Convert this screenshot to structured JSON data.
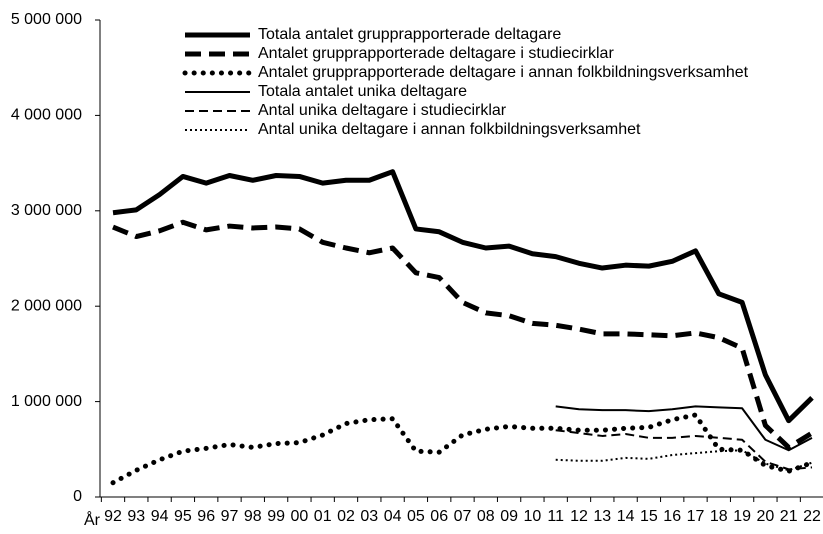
{
  "chart_data": {
    "type": "line",
    "x_label": "År",
    "categories": [
      "92",
      "93",
      "94",
      "95",
      "96",
      "97",
      "98",
      "99",
      "00",
      "01",
      "02",
      "03",
      "04",
      "05",
      "06",
      "07",
      "08",
      "09",
      "10",
      "11",
      "12",
      "13",
      "14",
      "15",
      "16",
      "17",
      "18",
      "19",
      "20",
      "21",
      "22"
    ],
    "ylim": [
      0,
      5000000
    ],
    "yticks": [
      0,
      {
        "value": 1000000,
        "label": "1 000 000"
      },
      {
        "value": 2000000,
        "label": "2 000 000"
      },
      {
        "value": 3000000,
        "label": "3 000 000"
      },
      {
        "value": 4000000,
        "label": "4 000 000"
      },
      {
        "value": 5000000,
        "label": "5 000 000"
      }
    ],
    "legend": "top",
    "series": [
      {
        "name": "Totala antalet grupprapporterade deltagare",
        "color": "#000000",
        "width": 5,
        "dash": "solid",
        "values": [
          2980000,
          3010000,
          3170000,
          3360000,
          3290000,
          3370000,
          3320000,
          3370000,
          3360000,
          3290000,
          3320000,
          3320000,
          3410000,
          2810000,
          2780000,
          2670000,
          2610000,
          2630000,
          2550000,
          2520000,
          2450000,
          2400000,
          2430000,
          2420000,
          2470000,
          2580000,
          2130000,
          2040000,
          1280000,
          800000,
          1040000
        ]
      },
      {
        "name": "Antalet grupprapporterade deltagare i studiecirklar",
        "color": "#000000",
        "width": 5,
        "dash": "dashed",
        "values": [
          2830000,
          2730000,
          2790000,
          2880000,
          2800000,
          2840000,
          2820000,
          2830000,
          2810000,
          2670000,
          2610000,
          2560000,
          2610000,
          2350000,
          2300000,
          2040000,
          1930000,
          1900000,
          1820000,
          1800000,
          1760000,
          1710000,
          1710000,
          1700000,
          1690000,
          1720000,
          1670000,
          1560000,
          750000,
          520000,
          670000
        ]
      },
      {
        "name": "Antalet grupprapporterade deltagare i annan folkbildningsverksamhet",
        "color": "#000000",
        "width": 5,
        "dash": "dotted",
        "values": [
          150000,
          280000,
          390000,
          480000,
          510000,
          550000,
          520000,
          560000,
          570000,
          650000,
          770000,
          810000,
          820000,
          480000,
          470000,
          650000,
          710000,
          740000,
          720000,
          720000,
          700000,
          700000,
          720000,
          730000,
          810000,
          860000,
          500000,
          490000,
          330000,
          270000,
          360000
        ]
      },
      {
        "name": "Totala antalet unika deltagare",
        "color": "#000000",
        "width": 2,
        "dash": "solid",
        "values": [
          null,
          null,
          null,
          null,
          null,
          null,
          null,
          null,
          null,
          null,
          null,
          null,
          null,
          null,
          null,
          null,
          null,
          null,
          null,
          950000,
          920000,
          910000,
          910000,
          900000,
          920000,
          950000,
          940000,
          930000,
          600000,
          490000,
          620000
        ]
      },
      {
        "name": "Antal unika deltagare i studiecirklar",
        "color": "#000000",
        "width": 2,
        "dash": "dashed",
        "values": [
          null,
          null,
          null,
          null,
          null,
          null,
          null,
          null,
          null,
          null,
          null,
          null,
          null,
          null,
          null,
          null,
          null,
          null,
          null,
          700000,
          670000,
          640000,
          660000,
          620000,
          620000,
          640000,
          620000,
          600000,
          370000,
          290000,
          310000
        ]
      },
      {
        "name": "Antal unika deltagare i annan folkbildningsverksamhet",
        "color": "#000000",
        "width": 2,
        "dash": "dotted",
        "values": [
          null,
          null,
          null,
          null,
          null,
          null,
          null,
          null,
          null,
          null,
          null,
          null,
          null,
          null,
          null,
          null,
          null,
          null,
          null,
          390000,
          380000,
          380000,
          410000,
          400000,
          440000,
          460000,
          480000,
          490000,
          350000,
          280000,
          360000
        ]
      }
    ]
  }
}
